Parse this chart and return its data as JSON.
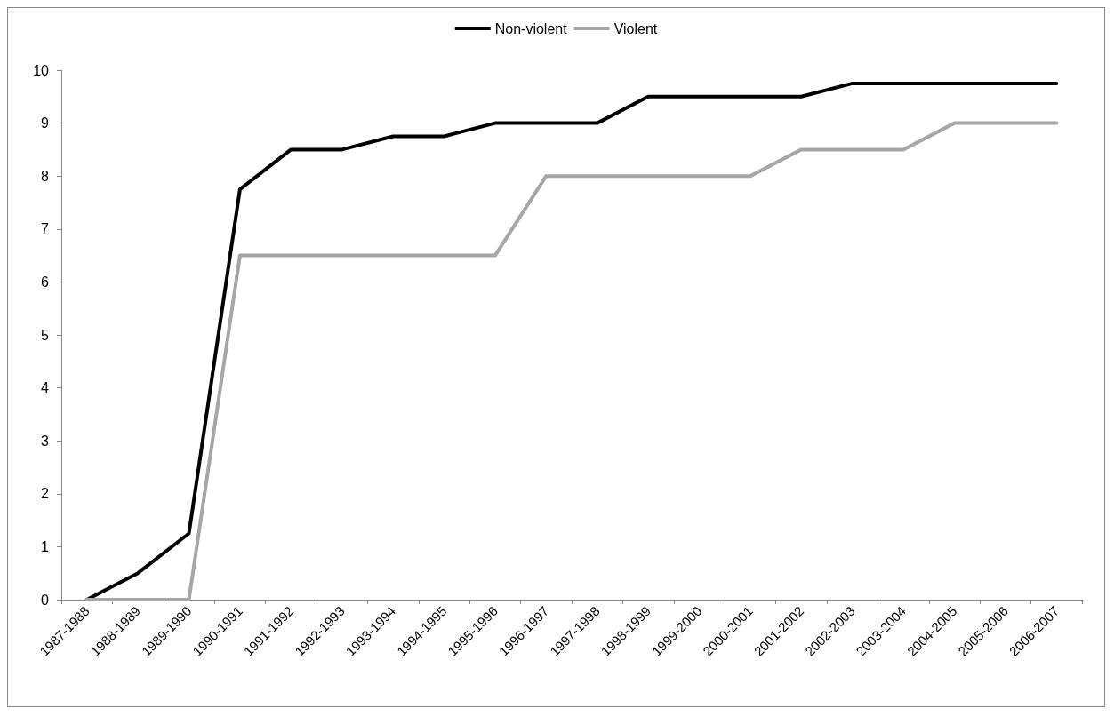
{
  "chart_data": {
    "type": "line",
    "categories": [
      "1987-1988",
      "1988-1989",
      "1989-1990",
      "1990-1991",
      "1991-1992",
      "1992-1993",
      "1993-1994",
      "1994-1995",
      "1995-1996",
      "1996-1997",
      "1997-1998",
      "1998-1999",
      "1999-2000",
      "2000-2001",
      "2001-2002",
      "2002-2003",
      "2003-2004",
      "2004-2005",
      "2005-2006",
      "2006-2007"
    ],
    "series": [
      {
        "name": "Non-violent",
        "color": "#000000",
        "values": [
          0,
          0.5,
          1.25,
          7.75,
          8.5,
          8.5,
          8.75,
          8.75,
          9,
          9,
          9,
          9.5,
          9.5,
          9.5,
          9.5,
          9.75,
          9.75,
          9.75,
          9.75,
          9.75
        ]
      },
      {
        "name": "Violent",
        "color": "#a6a6a6",
        "values": [
          0,
          0,
          0,
          6.5,
          6.5,
          6.5,
          6.5,
          6.5,
          6.5,
          8,
          8,
          8,
          8,
          8,
          8.5,
          8.5,
          8.5,
          9,
          9,
          9
        ]
      }
    ],
    "ylim": [
      0,
      10
    ],
    "yticks": [
      0,
      1,
      2,
      3,
      4,
      5,
      6,
      7,
      8,
      9,
      10
    ],
    "grid": false,
    "legend": "top",
    "marker": "none",
    "line_style": "solid"
  }
}
